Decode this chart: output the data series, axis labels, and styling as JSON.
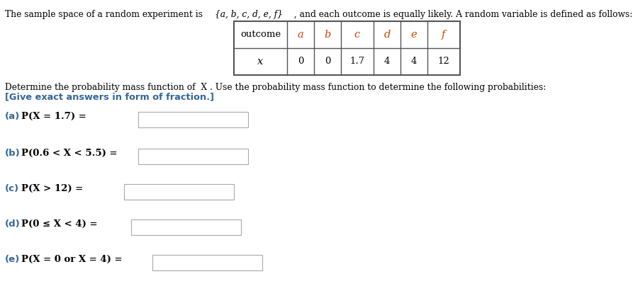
{
  "bg_color": "#ffffff",
  "top_text_1": "The sample space of a random experiment is  ",
  "top_text_set": "{a, b, c, d, e, f}",
  "top_text_2": " , and each outcome is equally likely. A random variable is defined as follows:",
  "table_header": [
    "outcome",
    "a",
    "b",
    "c",
    "d",
    "e",
    "f"
  ],
  "table_row_label": "x",
  "table_row_values": [
    "0",
    "0",
    "1.7",
    "4",
    "4",
    "12"
  ],
  "text_below_table_1": "Determine the probability mass function of  X . Use the probability mass function to determine the following probabilities:",
  "text_below_table_2": "[Give exact answers in form of fraction.]",
  "questions": [
    {
      "label": "(a)",
      "math": "P(X = 1.7) ="
    },
    {
      "label": "(b)",
      "math": "P(0.6 < X < 5.5) ="
    },
    {
      "label": "(c)",
      "math": "P(X > 12) ="
    },
    {
      "label": "(d)",
      "math": "P(0 ≤ X < 4) ="
    },
    {
      "label": "(e)",
      "math": "P(X = 0 or X = 4) ="
    }
  ],
  "header_color": "#cc4400",
  "label_color_2": "#336699",
  "normal_color": "#000000"
}
